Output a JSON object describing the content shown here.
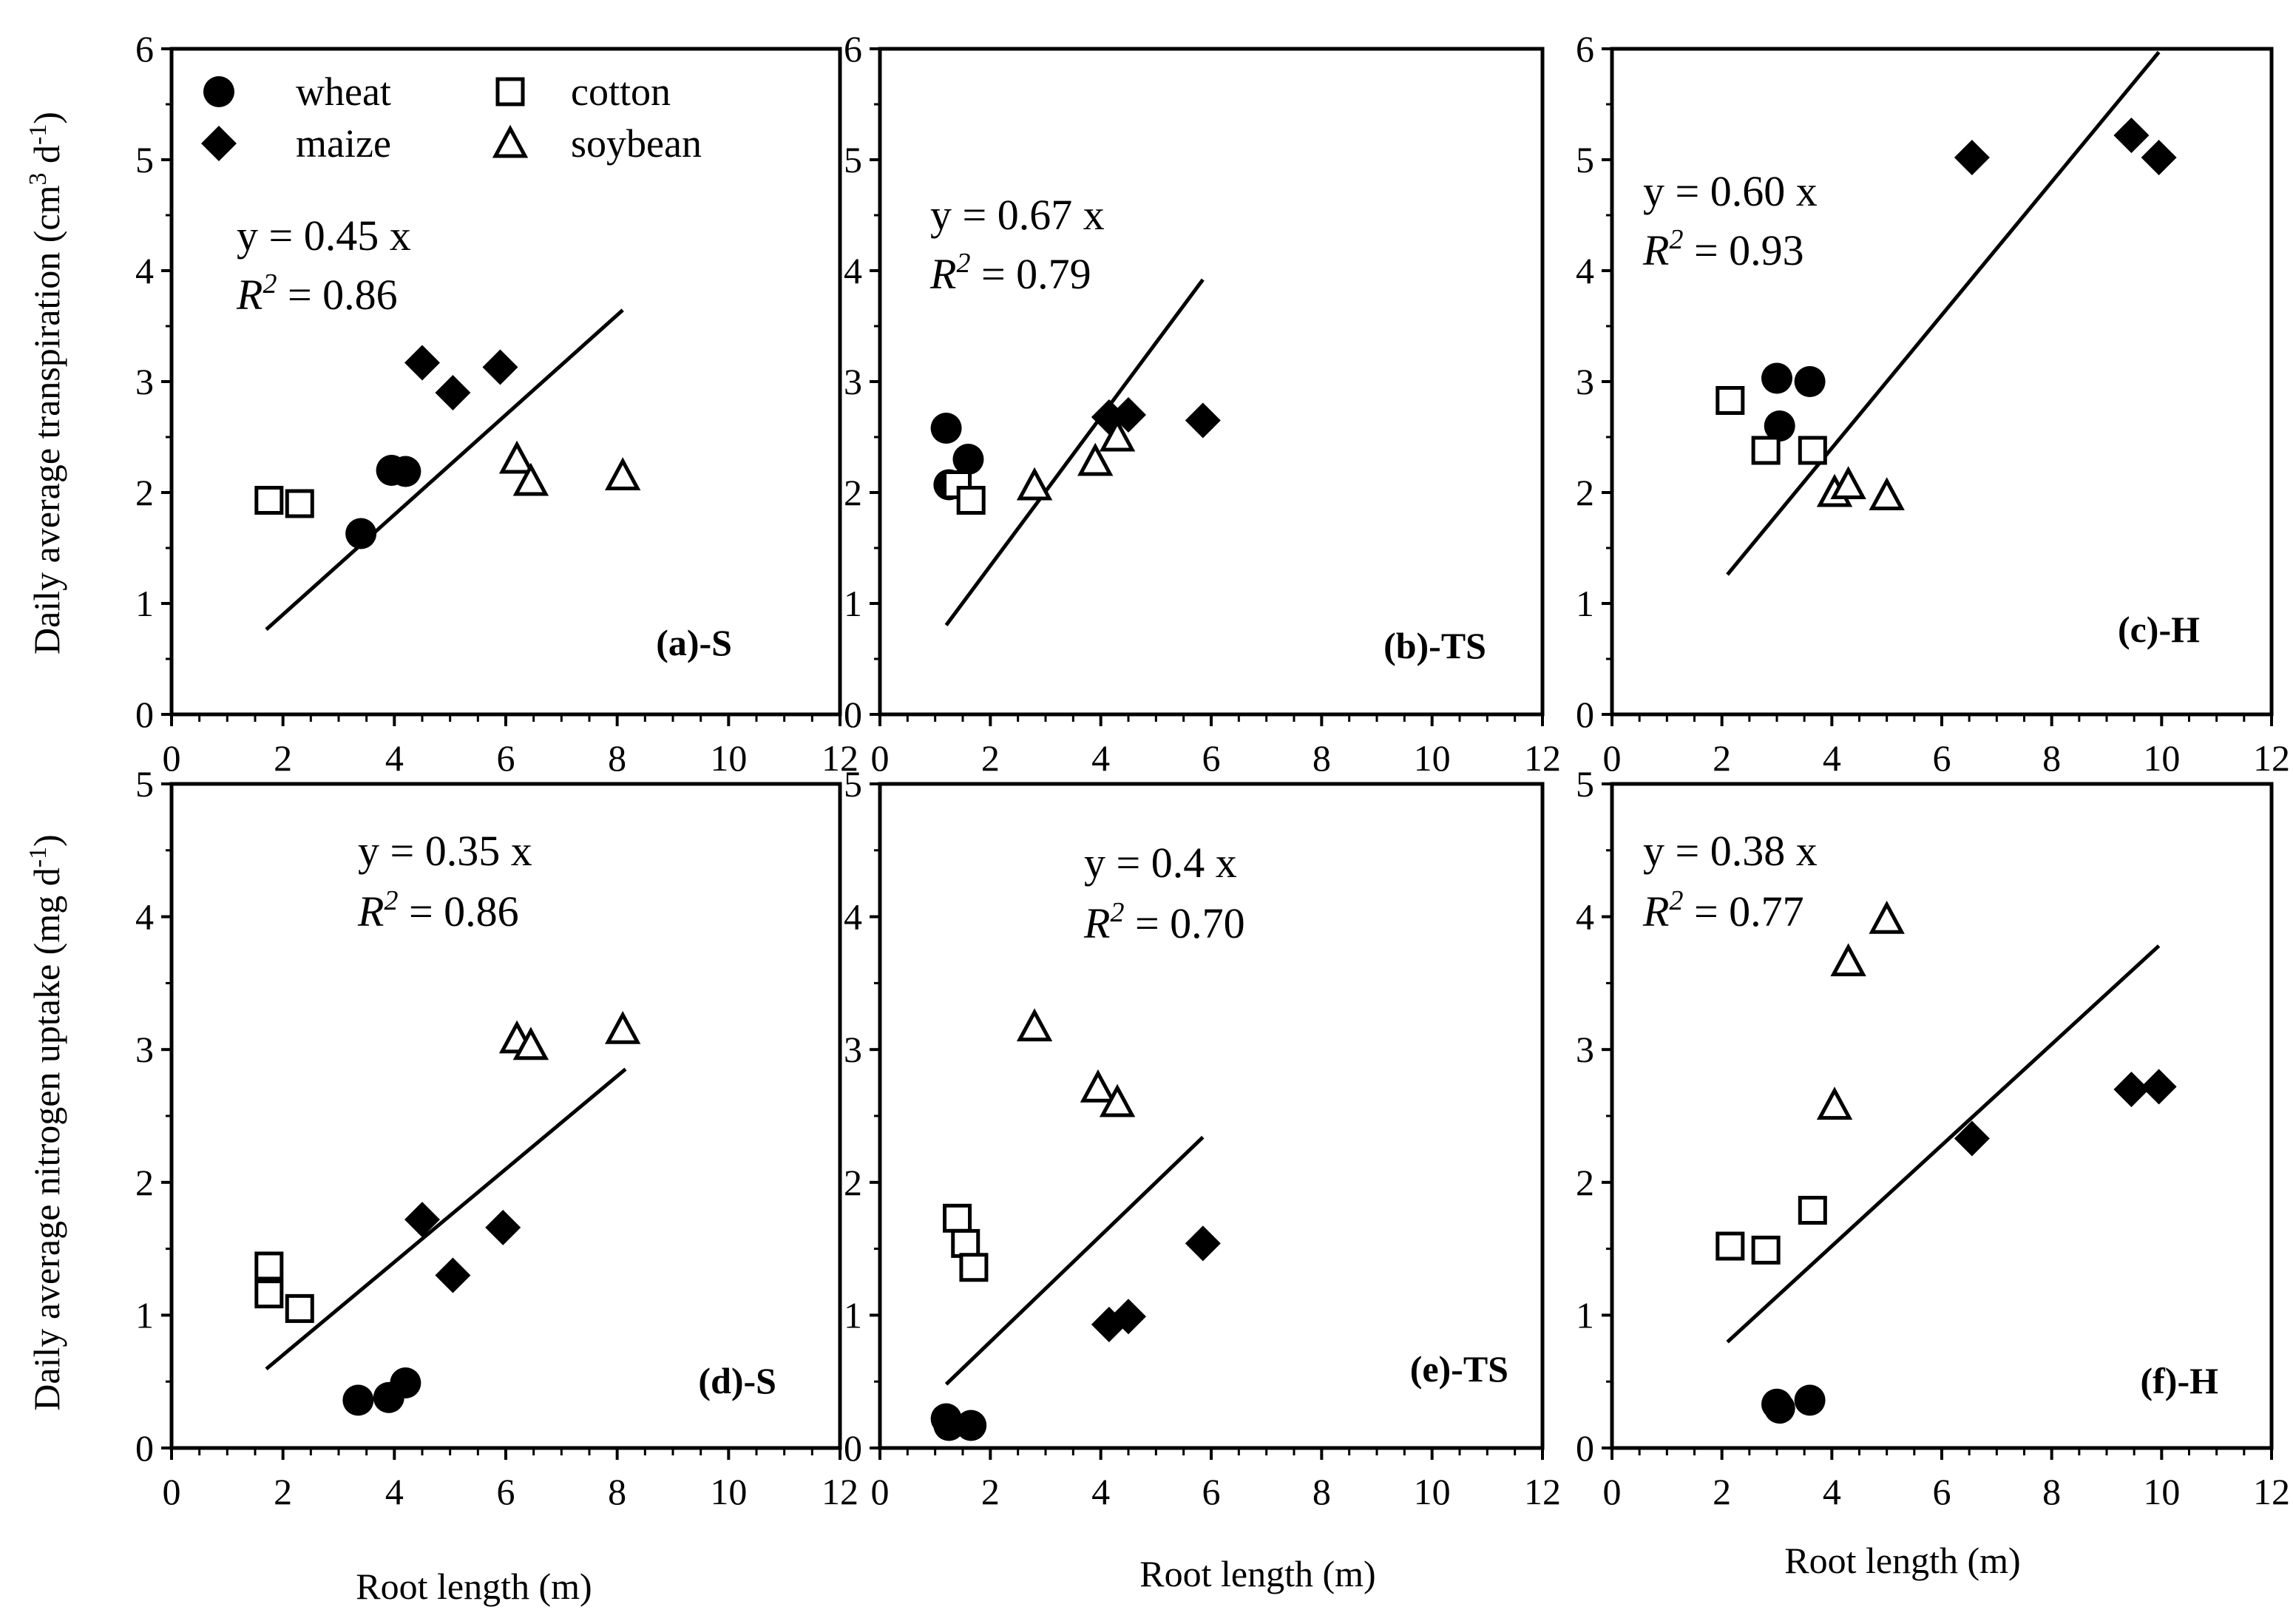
{
  "figure": {
    "ylabel_top": "Daily average transpiration (cm",
    "ylabel_top_sup": "3",
    "ylabel_top_mid": " d",
    "ylabel_top_sup2": "-1",
    "ylabel_top_end": ")",
    "ylabel_bottom": "Daily average nitrogen uptake (mg d",
    "ylabel_bottom_sup": "-1",
    "ylabel_bottom_end": ")",
    "xlabel": "Root length (m)"
  },
  "legend": {
    "items": [
      {
        "name": "wheat",
        "marker": "filled-circle"
      },
      {
        "name": "maize",
        "marker": "filled-diamond"
      },
      {
        "name": "cotton",
        "marker": "open-square"
      },
      {
        "name": "soybean",
        "marker": "open-triangle"
      }
    ]
  },
  "chart_data": [
    {
      "type": "scatter",
      "panel": "(a)-S",
      "xlim": [
        0,
        12
      ],
      "ylim": [
        0,
        6
      ],
      "xticks": [
        0,
        2,
        4,
        6,
        8,
        10,
        12
      ],
      "yticks": [
        0,
        1,
        2,
        3,
        4,
        5,
        6
      ],
      "equation": "y = 0.45 x",
      "r2_label": "R",
      "r2_sup": "2",
      "r2_value": " = 0.86",
      "fit": {
        "slope": 0.45,
        "x_range": [
          1.7,
          8.1
        ]
      },
      "series": [
        {
          "name": "wheat",
          "points": [
            [
              3.4,
              1.63
            ],
            [
              3.95,
              2.2
            ],
            [
              4.2,
              2.19
            ]
          ]
        },
        {
          "name": "maize",
          "points": [
            [
              4.5,
              3.17
            ],
            [
              5.05,
              2.9
            ],
            [
              5.9,
              3.13
            ]
          ]
        },
        {
          "name": "cotton",
          "points": [
            [
              1.75,
              1.93
            ],
            [
              2.3,
              1.9
            ]
          ]
        },
        {
          "name": "soybean",
          "points": [
            [
              6.2,
              2.3
            ],
            [
              6.45,
              2.1
            ],
            [
              8.1,
              2.15
            ]
          ]
        }
      ]
    },
    {
      "type": "scatter",
      "panel": "(b)-TS",
      "xlim": [
        0,
        12
      ],
      "ylim": [
        0,
        6
      ],
      "xticks": [
        0,
        2,
        4,
        6,
        8,
        10,
        12
      ],
      "yticks": [
        0,
        1,
        2,
        3,
        4,
        5,
        6
      ],
      "equation": "y = 0.67 x",
      "r2_label": "R",
      "r2_sup": "2",
      "r2_value": " = 0.79",
      "fit": {
        "slope": 0.67,
        "x_range": [
          1.2,
          5.85
        ]
      },
      "series": [
        {
          "name": "wheat",
          "points": [
            [
              1.2,
              2.58
            ],
            [
              1.25,
              2.07
            ],
            [
              1.6,
              2.3
            ]
          ]
        },
        {
          "name": "maize",
          "points": [
            [
              4.15,
              2.68
            ],
            [
              4.5,
              2.7
            ],
            [
              5.85,
              2.65
            ]
          ]
        },
        {
          "name": "cotton",
          "points": [
            [
              1.4,
              2.07
            ],
            [
              1.65,
              1.93
            ]
          ]
        },
        {
          "name": "soybean",
          "points": [
            [
              2.8,
              2.06
            ],
            [
              3.9,
              2.28
            ],
            [
              4.3,
              2.5
            ]
          ]
        }
      ]
    },
    {
      "type": "scatter",
      "panel": "(c)-H",
      "xlim": [
        0,
        12
      ],
      "ylim": [
        0,
        6
      ],
      "xticks": [
        0,
        2,
        4,
        6,
        8,
        10,
        12
      ],
      "yticks": [
        0,
        1,
        2,
        3,
        4,
        5,
        6
      ],
      "equation": "y = 0.60 x",
      "r2_label": "R",
      "r2_sup": "2",
      "r2_value": " = 0.93",
      "fit": {
        "slope": 0.6,
        "x_range": [
          2.1,
          9.95
        ]
      },
      "series": [
        {
          "name": "wheat",
          "points": [
            [
              3.0,
              3.03
            ],
            [
              3.6,
              3.0
            ],
            [
              3.05,
              2.6
            ]
          ]
        },
        {
          "name": "maize",
          "points": [
            [
              6.55,
              5.02
            ],
            [
              9.45,
              5.22
            ],
            [
              9.95,
              5.02
            ]
          ]
        },
        {
          "name": "cotton",
          "points": [
            [
              2.15,
              2.83
            ],
            [
              2.8,
              2.38
            ],
            [
              3.65,
              2.38
            ]
          ]
        },
        {
          "name": "soybean",
          "points": [
            [
              4.05,
              2.0
            ],
            [
              4.3,
              2.07
            ],
            [
              5.0,
              1.97
            ]
          ]
        }
      ]
    },
    {
      "type": "scatter",
      "panel": "(d)-S",
      "xlim": [
        0,
        12
      ],
      "ylim": [
        0,
        5
      ],
      "xticks": [
        0,
        2,
        4,
        6,
        8,
        10,
        12
      ],
      "yticks": [
        0,
        1,
        2,
        3,
        4,
        5
      ],
      "equation": "y = 0.35 x",
      "r2_label": "R",
      "r2_sup": "2",
      "r2_value": " = 0.86",
      "fit": {
        "slope": 0.35,
        "x_range": [
          1.7,
          8.15
        ]
      },
      "series": [
        {
          "name": "wheat",
          "points": [
            [
              3.35,
              0.36
            ],
            [
              3.9,
              0.38
            ],
            [
              4.2,
              0.49
            ]
          ]
        },
        {
          "name": "maize",
          "points": [
            [
              4.5,
              1.72
            ],
            [
              5.05,
              1.3
            ],
            [
              5.95,
              1.66
            ]
          ]
        },
        {
          "name": "cotton",
          "points": [
            [
              1.75,
              1.37
            ],
            [
              1.75,
              1.16
            ],
            [
              2.3,
              1.05
            ]
          ]
        },
        {
          "name": "soybean",
          "points": [
            [
              6.2,
              3.08
            ],
            [
              6.45,
              3.03
            ],
            [
              8.1,
              3.15
            ]
          ]
        }
      ]
    },
    {
      "type": "scatter",
      "panel": "(e)-TS",
      "xlim": [
        0,
        12
      ],
      "ylim": [
        0,
        5
      ],
      "xticks": [
        0,
        2,
        4,
        6,
        8,
        10,
        12
      ],
      "yticks": [
        0,
        1,
        2,
        3,
        4,
        5
      ],
      "equation": "y = 0.4 x",
      "r2_label": "R",
      "r2_sup": "2",
      "r2_value": " = 0.70",
      "fit": {
        "slope": 0.4,
        "x_range": [
          1.2,
          5.85
        ]
      },
      "series": [
        {
          "name": "wheat",
          "points": [
            [
              1.2,
              0.22
            ],
            [
              1.25,
              0.17
            ],
            [
              1.65,
              0.17
            ]
          ]
        },
        {
          "name": "maize",
          "points": [
            [
              4.15,
              0.93
            ],
            [
              4.5,
              0.99
            ],
            [
              5.85,
              1.54
            ]
          ]
        },
        {
          "name": "cotton",
          "points": [
            [
              1.4,
              1.73
            ],
            [
              1.55,
              1.54
            ],
            [
              1.7,
              1.36
            ]
          ]
        },
        {
          "name": "soybean",
          "points": [
            [
              2.8,
              3.17
            ],
            [
              3.95,
              2.71
            ],
            [
              4.3,
              2.6
            ]
          ]
        }
      ]
    },
    {
      "type": "scatter",
      "panel": "(f)-H",
      "xlim": [
        0,
        12
      ],
      "ylim": [
        0,
        5
      ],
      "xticks": [
        0,
        2,
        4,
        6,
        8,
        10,
        12
      ],
      "yticks": [
        0,
        1,
        2,
        3,
        4,
        5
      ],
      "equation": "y = 0.38 x",
      "r2_label": "R",
      "r2_sup": "2",
      "r2_value": " = 0.77",
      "fit": {
        "slope": 0.38,
        "x_range": [
          2.1,
          9.95
        ]
      },
      "series": [
        {
          "name": "wheat",
          "points": [
            [
              3.0,
              0.33
            ],
            [
              3.05,
              0.3
            ],
            [
              3.6,
              0.36
            ]
          ]
        },
        {
          "name": "maize",
          "points": [
            [
              6.55,
              2.33
            ],
            [
              9.45,
              2.7
            ],
            [
              9.95,
              2.72
            ]
          ]
        },
        {
          "name": "cotton",
          "points": [
            [
              2.15,
              1.52
            ],
            [
              2.8,
              1.49
            ],
            [
              3.65,
              1.79
            ]
          ]
        },
        {
          "name": "soybean",
          "points": [
            [
              4.05,
              2.58
            ],
            [
              4.3,
              3.66
            ],
            [
              5.0,
              3.98
            ]
          ]
        }
      ]
    }
  ]
}
